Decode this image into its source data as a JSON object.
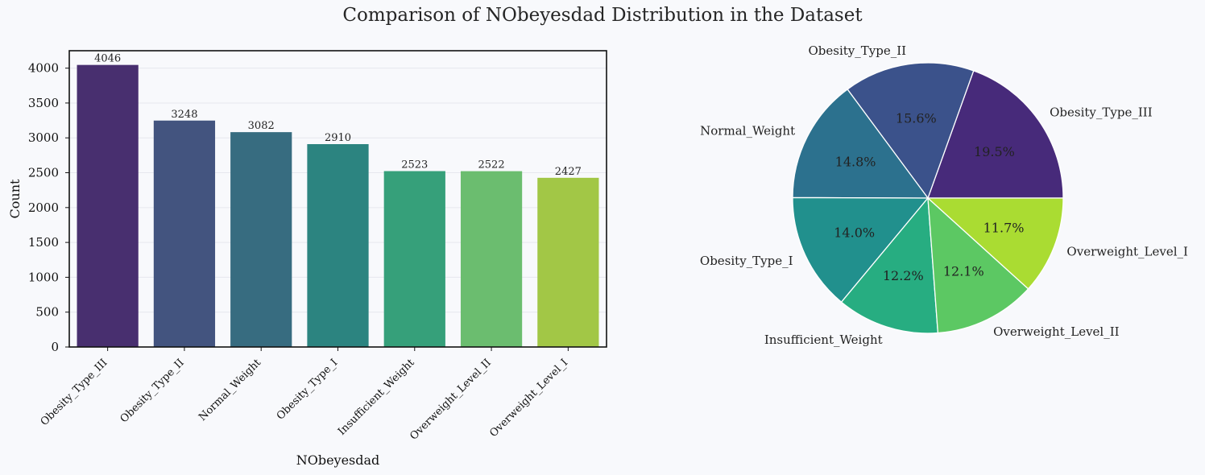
{
  "figure_title": "Comparison of NObeyesdad Distribution in the Dataset",
  "chart_data": [
    {
      "type": "bar",
      "xlabel": "NObeyesdad",
      "ylabel": "Count",
      "ylim": [
        0,
        4250
      ],
      "yticks": [
        0,
        500,
        1000,
        1500,
        2000,
        2500,
        3000,
        3500,
        4000
      ],
      "grid": true,
      "categories": [
        "Obesity_Type_III",
        "Obesity_Type_II",
        "Normal_Weight",
        "Obesity_Type_I",
        "Insufficient_Weight",
        "Overweight_Level_II",
        "Overweight_Level_I"
      ],
      "values": [
        4046,
        3248,
        3082,
        2910,
        2523,
        2522,
        2427
      ],
      "colors": [
        "#482f6f",
        "#43547f",
        "#376c80",
        "#2c8480",
        "#36a07a",
        "#6bbd6f",
        "#a2c746"
      ],
      "data_labels": [
        "4046",
        "3248",
        "3082",
        "2910",
        "2523",
        "2522",
        "2427"
      ]
    },
    {
      "type": "pie",
      "labels": [
        "Obesity_Type_III",
        "Obesity_Type_II",
        "Normal_Weight",
        "Obesity_Type_I",
        "Insufficient_Weight",
        "Overweight_Level_II",
        "Overweight_Level_I"
      ],
      "values": [
        19.5,
        15.6,
        14.8,
        14.0,
        12.2,
        12.1,
        11.7
      ],
      "pct_labels": [
        "19.5%",
        "15.6%",
        "14.8%",
        "14.0%",
        "12.2%",
        "12.1%",
        "11.7%"
      ],
      "colors": [
        "#472a7a",
        "#3b528b",
        "#2c718e",
        "#21908d",
        "#27ad81",
        "#5cc863",
        "#aadc32"
      ],
      "start_angle": 0,
      "direction": "counterclockwise"
    }
  ]
}
